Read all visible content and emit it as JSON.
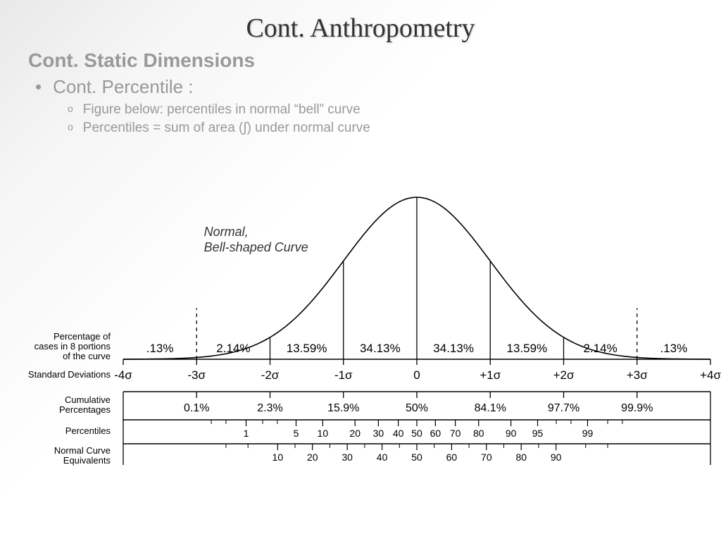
{
  "title": "Cont. Anthropometry",
  "subtitle": "Cont. Static Dimensions",
  "bullet1": "Cont. Percentile :",
  "sub_bullets": [
    "Figure below: percentiles in normal “bell” curve",
    "Percentiles = sum of area (∫) under normal curve"
  ],
  "chart": {
    "curve_label_l1": "Normal,",
    "curve_label_l2": "Bell-shaped Curve",
    "curve_label_fontsize": 18,
    "curve_label_style": "italic",
    "curve_color": "#000000",
    "curve_stroke_width": 1.6,
    "background": "#ffffff",
    "axis_stroke": "#000000",
    "axis_stroke_width": 1.4,
    "dashed_stroke": "#000000",
    "dashed_dash": "5,5",
    "sigma_positions": [
      -4,
      -3,
      -2,
      -1,
      0,
      1,
      2,
      3,
      4
    ],
    "label_percentage_cases": "Percentage of\ncases in 8 portions\nof the curve",
    "portion_labels": [
      ".13%",
      "2.14%",
      "13.59%",
      "34.13%",
      "34.13%",
      "13.59%",
      "2.14%",
      ".13%"
    ],
    "portion_fontsize": 17,
    "label_sd": "Standard Deviations",
    "sd_labels": [
      "-4σ",
      "-3σ",
      "-2σ",
      "-1σ",
      "0",
      "+1σ",
      "+2σ",
      "+3σ",
      "+4σ"
    ],
    "sd_fontsize": 17,
    "label_cumulative": "Cumulative\nPercentages",
    "cumulative_labels": [
      "0.1%",
      "2.3%",
      "15.9%",
      "50%",
      "84.1%",
      "97.7%",
      "99.9%"
    ],
    "cumulative_positions": [
      -3,
      -2,
      -1,
      0,
      1,
      2,
      3
    ],
    "cumulative_fontsize": 16,
    "label_percentiles": "Percentiles",
    "percentile_values": [
      1,
      5,
      10,
      20,
      30,
      40,
      50,
      60,
      70,
      80,
      90,
      95,
      99
    ],
    "percentile_zscores": [
      -2.326,
      -1.645,
      -1.282,
      -0.842,
      -0.524,
      -0.253,
      0,
      0.253,
      0.524,
      0.842,
      1.282,
      1.645,
      2.326
    ],
    "percentile_fontsize": 14,
    "label_nce": "Normal Curve\nEquivalents",
    "nce_values": [
      10,
      20,
      30,
      40,
      50,
      60,
      70,
      80,
      90
    ],
    "nce_positions_in_sigma": [
      -1.896,
      -1.422,
      -0.948,
      -0.474,
      0,
      0.474,
      0.948,
      1.422,
      1.896
    ],
    "nce_fontsize": 14,
    "row_label_fontsize": 13,
    "row_label_color": "#000000"
  }
}
